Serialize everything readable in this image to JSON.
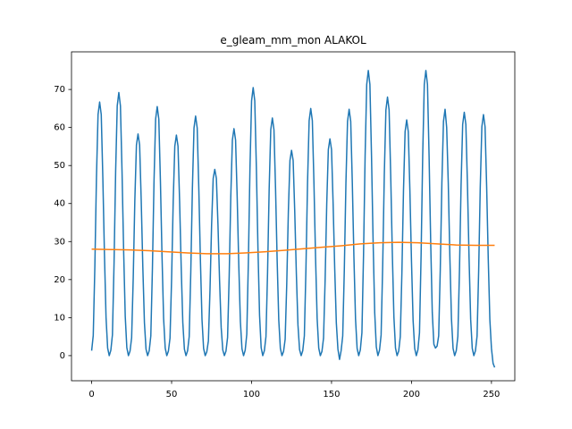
{
  "chart_data": {
    "type": "line",
    "title": "e_gleam_mm_mon ALAKOL",
    "xlim": [
      -12.6,
      264.6
    ],
    "ylim": [
      -6.6,
      79.9
    ],
    "xticks": [
      0,
      50,
      100,
      150,
      200,
      250
    ],
    "yticks": [
      0,
      10,
      20,
      30,
      40,
      50,
      60,
      70
    ],
    "series": [
      {
        "color": "#1f77b4",
        "x": [
          0,
          1,
          2,
          3,
          4,
          5,
          6,
          7,
          8,
          9,
          10,
          11,
          12,
          13,
          14,
          15,
          16,
          17,
          18,
          19,
          20,
          21,
          22,
          23,
          24,
          25,
          26,
          27,
          28,
          29,
          30,
          31,
          32,
          33,
          34,
          35,
          36,
          37,
          38,
          39,
          40,
          41,
          42,
          43,
          44,
          45,
          46,
          47,
          48,
          49,
          50,
          51,
          52,
          53,
          54,
          55,
          56,
          57,
          58,
          59,
          60,
          61,
          62,
          63,
          64,
          65,
          66,
          67,
          68,
          69,
          70,
          71,
          72,
          73,
          74,
          75,
          76,
          77,
          78,
          79,
          80,
          81,
          82,
          83,
          84,
          85,
          86,
          87,
          88,
          89,
          90,
          91,
          92,
          93,
          94,
          95,
          96,
          97,
          98,
          99,
          100,
          101,
          102,
          103,
          104,
          105,
          106,
          107,
          108,
          109,
          110,
          111,
          112,
          113,
          114,
          115,
          116,
          117,
          118,
          119,
          120,
          121,
          122,
          123,
          124,
          125,
          126,
          127,
          128,
          129,
          130,
          131,
          132,
          133,
          134,
          135,
          136,
          137,
          138,
          139,
          140,
          141,
          142,
          143,
          144,
          145,
          146,
          147,
          148,
          149,
          150,
          151,
          152,
          153,
          154,
          155,
          156,
          157,
          158,
          159,
          160,
          161,
          162,
          163,
          164,
          165,
          166,
          167,
          168,
          169,
          170,
          171,
          172,
          173,
          174,
          175,
          176,
          177,
          178,
          179,
          180,
          181,
          182,
          183,
          184,
          185,
          186,
          187,
          188,
          189,
          190,
          191,
          192,
          193,
          194,
          195,
          196,
          197,
          198,
          199,
          200,
          201,
          202,
          203,
          204,
          205,
          206,
          207,
          208,
          209,
          210,
          211,
          212,
          213,
          214,
          215,
          216,
          217,
          218,
          219,
          220,
          221,
          222,
          223,
          224,
          225,
          226,
          227,
          228,
          229,
          230,
          231,
          232,
          233,
          234,
          235,
          236,
          237,
          238,
          239,
          240,
          241,
          242,
          243,
          244,
          245,
          246,
          247,
          248,
          249,
          250,
          251,
          252
        ],
        "values": [
          1.3,
          5.3,
          23.3,
          46.7,
          63.4,
          66.7,
          63.4,
          46.7,
          26.7,
          10.0,
          2.0,
          0,
          1.4,
          5.5,
          24.2,
          48.4,
          65.7,
          69.2,
          65.7,
          48.4,
          27.7,
          10.4,
          2.1,
          0,
          1.2,
          4.7,
          20.4,
          40.8,
          55.4,
          58.3,
          55.4,
          40.8,
          23.3,
          8.7,
          1.7,
          0,
          1.3,
          5.2,
          22.9,
          45.9,
          62.2,
          65.5,
          62.2,
          45.9,
          26.2,
          9.8,
          2.0,
          0,
          1.2,
          4.6,
          20.3,
          40.6,
          55.1,
          58,
          55.1,
          40.6,
          23.2,
          8.7,
          1.7,
          0,
          1.3,
          5.0,
          22.1,
          44.1,
          59.9,
          63,
          59.9,
          44.1,
          25.2,
          9.5,
          1.9,
          0,
          1.0,
          3.9,
          17.2,
          34.3,
          46.6,
          49,
          46.6,
          34.3,
          19.6,
          7.4,
          1.5,
          0,
          1.2,
          4.8,
          20.9,
          41.8,
          56.7,
          59.7,
          56.7,
          41.8,
          23.9,
          9.0,
          1.8,
          0,
          1.4,
          5.6,
          24.7,
          49.4,
          67.0,
          70.5,
          67.0,
          49.4,
          28.2,
          10.6,
          2.1,
          0,
          1.3,
          5.0,
          21.9,
          43.8,
          59.4,
          62.5,
          59.4,
          43.8,
          25.0,
          9.4,
          1.9,
          0,
          1.1,
          4.3,
          18.9,
          37.8,
          51.3,
          54,
          51.3,
          37.8,
          21.6,
          8.1,
          1.6,
          0,
          1.3,
          5.2,
          22.8,
          45.5,
          61.8,
          65,
          61.8,
          45.5,
          26.0,
          9.8,
          2.0,
          0,
          1.1,
          4.6,
          20.0,
          39.9,
          54.2,
          57,
          54.2,
          39.9,
          22.8,
          8.6,
          1.7,
          -1.0,
          1.3,
          5.2,
          22.7,
          45.4,
          61.6,
          64.8,
          61.6,
          45.4,
          25.9,
          9.7,
          1.9,
          0,
          1.5,
          6.0,
          26.3,
          52.5,
          71.3,
          75,
          71.3,
          52.5,
          30.0,
          11.3,
          2.3,
          0,
          1.4,
          5.4,
          23.8,
          47.6,
          64.6,
          68,
          64.6,
          47.6,
          27.2,
          10.2,
          2.0,
          0,
          1.2,
          5.0,
          21.7,
          43.4,
          58.9,
          62,
          58.9,
          43.4,
          24.8,
          9.3,
          1.9,
          0,
          1.5,
          6.0,
          26.3,
          52.5,
          71.3,
          75,
          71.3,
          52.5,
          30.0,
          11.3,
          3.0,
          2.0,
          2.5,
          5.2,
          22.7,
          45.4,
          61.6,
          64.8,
          60.0,
          45.4,
          25.9,
          9.7,
          1.9,
          0,
          1.3,
          5.1,
          22.4,
          44.8,
          60.8,
          64,
          60.8,
          44.8,
          25.6,
          9.6,
          1.9,
          0,
          1.3,
          5.1,
          22.2,
          44.4,
          60.2,
          63.4,
          60.2,
          44.4,
          25.4,
          9.5,
          1.9,
          -2.0,
          -3.1
        ]
      },
      {
        "color": "#ff7f0e",
        "x": [
          0,
          12,
          24,
          36,
          48,
          60,
          72,
          84,
          96,
          108,
          120,
          132,
          144,
          156,
          168,
          180,
          192,
          204,
          216,
          228,
          240,
          252
        ],
        "values": [
          28.0,
          27.9,
          27.8,
          27.6,
          27.3,
          27.0,
          26.8,
          26.8,
          27.0,
          27.3,
          27.7,
          28.1,
          28.5,
          28.9,
          29.4,
          29.7,
          29.8,
          29.7,
          29.4,
          29.1,
          29.0,
          29.0
        ]
      }
    ]
  }
}
